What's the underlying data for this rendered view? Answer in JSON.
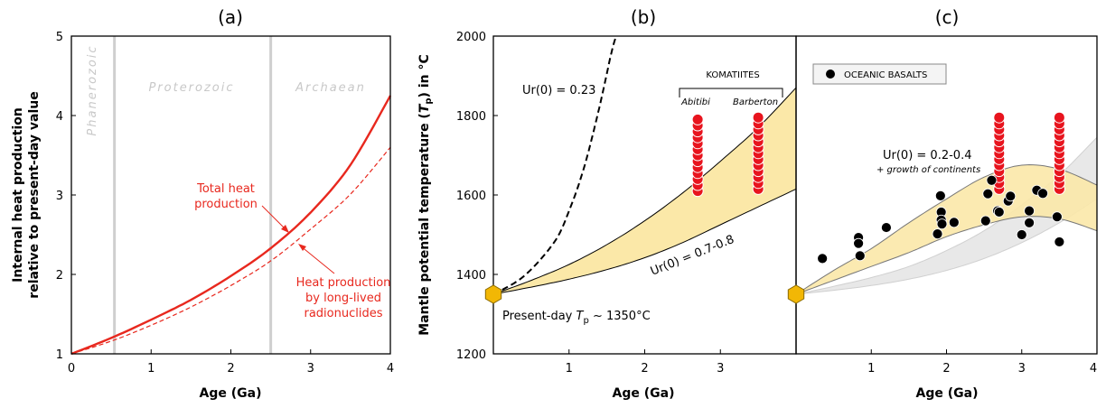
{
  "panels": {
    "a": {
      "title": "(a)"
    },
    "b": {
      "title": "(b)"
    },
    "c": {
      "title": "(c)"
    }
  },
  "colors": {
    "red": "#e8281e",
    "band": "#fbe8a8",
    "grey_band": "#e6e6e6",
    "hexagon": "#f2b705"
  },
  "chart_data": [
    {
      "type": "line",
      "panel": "a",
      "xlabel": "Age (Ga)",
      "ylabel_line1": "Internal heat production",
      "ylabel_line2": "relative to present-day value",
      "xlim": [
        0,
        4
      ],
      "ylim": [
        1,
        5
      ],
      "xticks": [
        0,
        1,
        2,
        3,
        4
      ],
      "yticks": [
        1,
        2,
        3,
        4,
        5
      ],
      "eon_boundaries": [
        0.54,
        2.5
      ],
      "eons": [
        "Phanerozoic",
        "Proterozoic",
        "Archaean"
      ],
      "series": [
        {
          "name": "Total heat production",
          "style": "solid",
          "x": [
            0,
            0.5,
            1,
            1.5,
            2,
            2.5,
            3,
            3.5,
            4
          ],
          "y": [
            1.0,
            1.2,
            1.43,
            1.68,
            1.98,
            2.33,
            2.78,
            3.38,
            4.25
          ]
        },
        {
          "name": "Heat production by long-lived radionuclides",
          "style": "dashed",
          "x": [
            0,
            0.5,
            1,
            1.5,
            2,
            2.5,
            3,
            3.5,
            4
          ],
          "y": [
            1.0,
            1.16,
            1.36,
            1.59,
            1.86,
            2.17,
            2.57,
            3.01,
            3.6
          ]
        }
      ],
      "annotations": {
        "total_line1": "Total heat",
        "total_line2": "production",
        "lived_line1": "Heat production",
        "lived_line2": "by long-lived",
        "lived_line3": "radionuclides"
      }
    },
    {
      "type": "line",
      "panel": "b",
      "xlabel": "Age (Ga)",
      "ylabel": "Mantle potential temperature (Tp) in °C",
      "xlim": [
        0,
        4
      ],
      "ylim": [
        1200,
        2000
      ],
      "xticks": [
        1,
        2,
        3
      ],
      "yticks": [
        1200,
        1400,
        1600,
        1800,
        2000
      ],
      "present_day": {
        "x": 0,
        "y": 1350
      },
      "series": [
        {
          "name": "Ur(0) = 0.23",
          "style": "dashed",
          "x": [
            0,
            0.4,
            0.8,
            1.0,
            1.2,
            1.4,
            1.55,
            1.62
          ],
          "y": [
            1350,
            1395,
            1480,
            1560,
            1670,
            1820,
            1950,
            2000
          ]
        }
      ],
      "band": {
        "name": "Ur(0) = 0.7-0.8",
        "x": [
          0,
          0.5,
          1,
          1.5,
          2,
          2.5,
          3,
          3.5,
          4
        ],
        "upper": [
          1350,
          1385,
          1425,
          1475,
          1535,
          1605,
          1685,
          1770,
          1870
        ],
        "lower": [
          1350,
          1368,
          1388,
          1412,
          1442,
          1480,
          1525,
          1570,
          1615
        ]
      },
      "komatiites": [
        {
          "name": "Abitibi",
          "x": 2.7,
          "y": [
            1610,
            1625,
            1640,
            1655,
            1670,
            1685,
            1700,
            1715,
            1730,
            1745,
            1760,
            1775,
            1790
          ]
        },
        {
          "name": "Barberton",
          "x": 3.5,
          "y": [
            1615,
            1630,
            1645,
            1660,
            1675,
            1690,
            1705,
            1720,
            1735,
            1750,
            1765,
            1780,
            1795
          ]
        }
      ],
      "annotations": {
        "ur023": "Ur(0) = 0.23",
        "ur078": "Ur(0) = 0.7-0.8",
        "komatiites": "KOMATIITES",
        "abitibi": "Abitibi",
        "barberton": "Barberton",
        "present_prefix": "Present-day ",
        "present_T": "T",
        "present_p": "p",
        "present_suffix": " ~ 1350°C"
      }
    },
    {
      "type": "scatter",
      "panel": "c",
      "xlabel": "Age (Ga)",
      "xlim": [
        0,
        4
      ],
      "ylim": [
        1200,
        2000
      ],
      "xticks": [
        1,
        2,
        3,
        4
      ],
      "legend": {
        "label": "OCEANIC BASALTS",
        "placement": "top-left"
      },
      "present_day": {
        "x": 0,
        "y": 1350
      },
      "band": {
        "name": "Ur(0) = 0.2-0.4",
        "x": [
          0,
          0.5,
          1,
          1.5,
          2,
          2.5,
          3,
          3.5,
          4
        ],
        "upper": [
          1350,
          1410,
          1465,
          1530,
          1590,
          1645,
          1675,
          1665,
          1625
        ],
        "lower": [
          1350,
          1385,
          1420,
          1455,
          1495,
          1525,
          1545,
          1540,
          1510
        ]
      },
      "grey_band": {
        "x": [
          0,
          0.5,
          1,
          1.5,
          2,
          2.5,
          3,
          3.5,
          4
        ],
        "upper": [
          1350,
          1370,
          1392,
          1420,
          1460,
          1510,
          1575,
          1650,
          1745
        ],
        "lower": [
          1350,
          1360,
          1372,
          1388,
          1410,
          1440,
          1480,
          1530,
          1590
        ]
      },
      "basalts": {
        "x": [
          0.35,
          0.83,
          0.83,
          0.85,
          1.2,
          1.88,
          1.92,
          1.93,
          1.93,
          1.94,
          2.1,
          2.52,
          2.55,
          2.6,
          2.68,
          2.7,
          2.82,
          2.85,
          3.0,
          3.1,
          3.1,
          3.2,
          3.28,
          3.47,
          3.5
        ],
        "y": [
          1440,
          1493,
          1478,
          1447,
          1518,
          1502,
          1598,
          1557,
          1537,
          1527,
          1531,
          1535,
          1603,
          1637,
          1560,
          1557,
          1585,
          1597,
          1500,
          1530,
          1560,
          1612,
          1604,
          1545,
          1482
        ]
      },
      "komatiites": [
        {
          "x": 2.7,
          "y": [
            1615,
            1630,
            1645,
            1660,
            1675,
            1690,
            1705,
            1720,
            1735,
            1750,
            1765,
            1780,
            1795
          ]
        },
        {
          "x": 3.5,
          "y": [
            1615,
            1630,
            1645,
            1660,
            1675,
            1690,
            1705,
            1720,
            1735,
            1750,
            1765,
            1780,
            1795
          ]
        }
      ],
      "annotations": {
        "ur": "Ur(0) = 0.2-0.4",
        "growth": "+ growth of continents"
      }
    }
  ]
}
